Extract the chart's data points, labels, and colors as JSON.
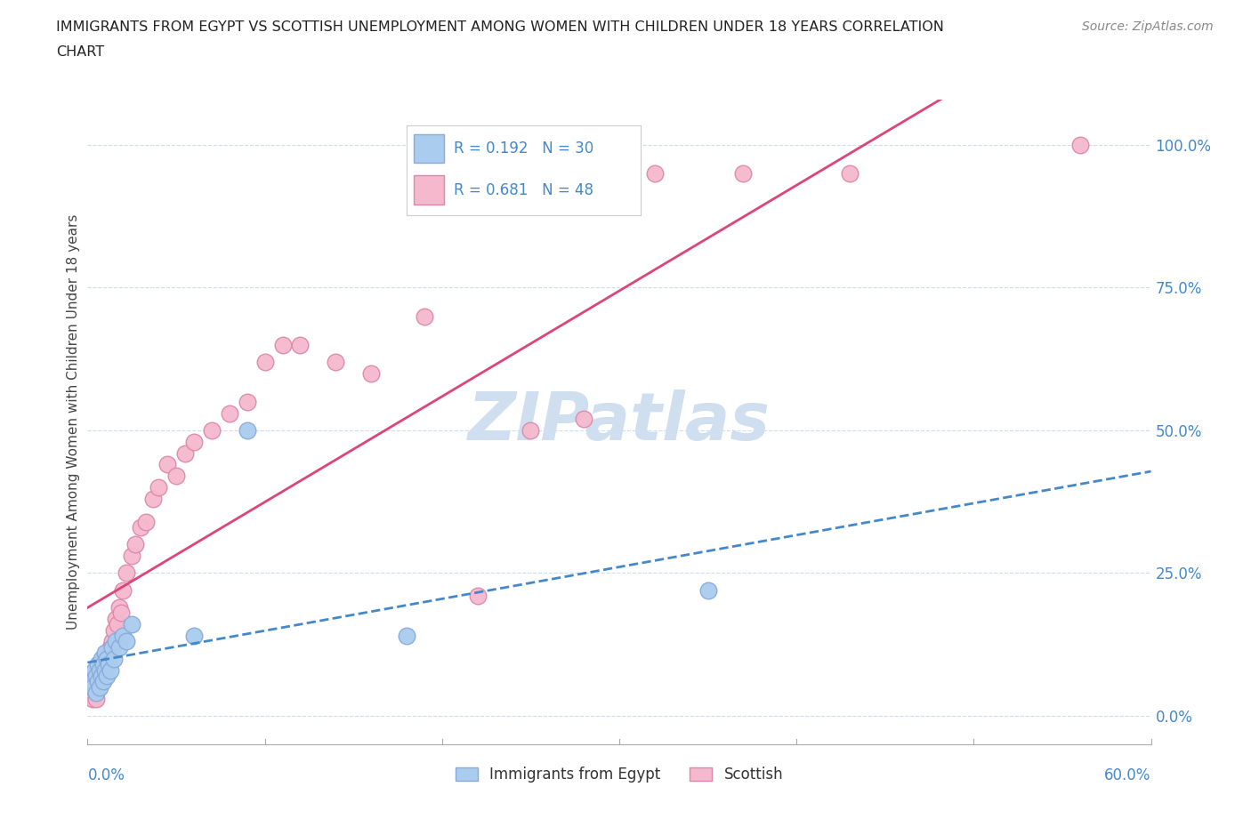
{
  "title_line1": "IMMIGRANTS FROM EGYPT VS SCOTTISH UNEMPLOYMENT AMONG WOMEN WITH CHILDREN UNDER 18 YEARS CORRELATION",
  "title_line2": "CHART",
  "source": "Source: ZipAtlas.com",
  "ylabel": "Unemployment Among Women with Children Under 18 years",
  "x_label_bottom_left": "0.0%",
  "x_label_bottom_right": "60.0%",
  "y_ticks": [
    0.0,
    0.25,
    0.5,
    0.75,
    1.0
  ],
  "y_tick_labels": [
    "0.0%",
    "25.0%",
    "50.0%",
    "75.0%",
    "100.0%"
  ],
  "xlim": [
    0.0,
    0.6
  ],
  "ylim": [
    -0.05,
    1.08
  ],
  "legend_bottom_labels": [
    "Immigrants from Egypt",
    "Scottish"
  ],
  "watermark": "ZIPatlas",
  "egypt_scatter_x": [
    0.002,
    0.003,
    0.004,
    0.005,
    0.005,
    0.006,
    0.006,
    0.007,
    0.007,
    0.008,
    0.008,
    0.009,
    0.009,
    0.01,
    0.01,
    0.011,
    0.011,
    0.012,
    0.013,
    0.014,
    0.015,
    0.016,
    0.018,
    0.02,
    0.022,
    0.025,
    0.06,
    0.09,
    0.18,
    0.35
  ],
  "egypt_scatter_y": [
    0.06,
    0.05,
    0.08,
    0.04,
    0.07,
    0.06,
    0.09,
    0.05,
    0.08,
    0.07,
    0.1,
    0.06,
    0.09,
    0.08,
    0.11,
    0.07,
    0.1,
    0.09,
    0.08,
    0.12,
    0.1,
    0.13,
    0.12,
    0.14,
    0.13,
    0.16,
    0.14,
    0.5,
    0.14,
    0.22
  ],
  "scottish_scatter_x": [
    0.002,
    0.003,
    0.004,
    0.005,
    0.005,
    0.006,
    0.007,
    0.007,
    0.008,
    0.009,
    0.01,
    0.011,
    0.012,
    0.013,
    0.014,
    0.015,
    0.016,
    0.017,
    0.018,
    0.019,
    0.02,
    0.022,
    0.025,
    0.027,
    0.03,
    0.033,
    0.037,
    0.04,
    0.045,
    0.05,
    0.055,
    0.06,
    0.07,
    0.08,
    0.09,
    0.1,
    0.11,
    0.12,
    0.14,
    0.16,
    0.19,
    0.22,
    0.25,
    0.28,
    0.32,
    0.37,
    0.43,
    0.56
  ],
  "scottish_scatter_y": [
    0.04,
    0.03,
    0.05,
    0.06,
    0.03,
    0.05,
    0.07,
    0.06,
    0.08,
    0.07,
    0.1,
    0.09,
    0.11,
    0.12,
    0.13,
    0.15,
    0.17,
    0.16,
    0.19,
    0.18,
    0.22,
    0.25,
    0.28,
    0.3,
    0.33,
    0.34,
    0.38,
    0.4,
    0.44,
    0.42,
    0.46,
    0.48,
    0.5,
    0.53,
    0.55,
    0.62,
    0.65,
    0.65,
    0.62,
    0.6,
    0.7,
    0.21,
    0.5,
    0.52,
    0.95,
    0.95,
    0.95,
    1.0
  ],
  "egypt_line_color": "#4488cc",
  "egypt_line_style": "--",
  "scottish_line_color": "#dd4477",
  "scottish_line_style": "-",
  "egypt_marker_color": "#aaccee",
  "scottish_marker_color": "#f5b8cc",
  "egypt_marker_edge": "#88aadd",
  "scottish_marker_edge": "#dd88aa",
  "background_color": "#ffffff",
  "grid_color": "#ccddee",
  "title_color": "#222222",
  "axis_tick_color": "#4488cc",
  "watermark_color": "#d0dff0",
  "R_egypt": 0.192,
  "N_egypt": 30,
  "R_scottish": 0.681,
  "N_scottish": 48
}
